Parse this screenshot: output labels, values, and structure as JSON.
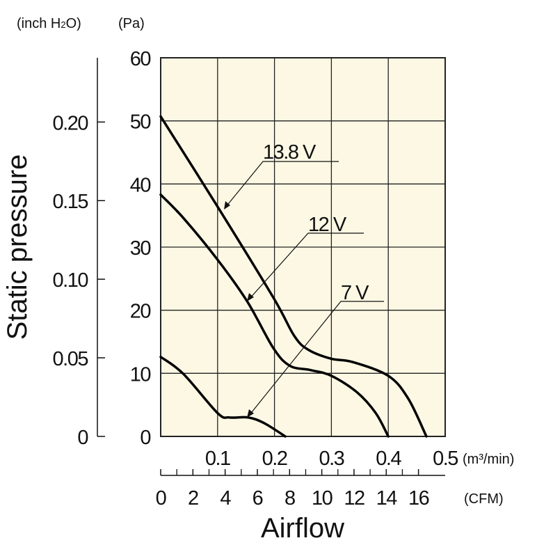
{
  "chart_data": {
    "type": "line",
    "title": "",
    "xlabel": "Airflow",
    "ylabel": "Static pressure",
    "x_unit_primary": "(m³/min)",
    "x_unit_secondary": "(CFM)",
    "y_unit_primary": "(Pa)",
    "y_unit_secondary_parts": [
      "(inch H",
      "2",
      "O)"
    ],
    "xlim": [
      0,
      0.5
    ],
    "ylim": [
      0,
      60
    ],
    "grid": true,
    "background": "#fcf8e4",
    "x_ticks": [
      {
        "v": 0.1,
        "label": "0.1"
      },
      {
        "v": 0.2,
        "label": "0.2"
      },
      {
        "v": 0.3,
        "label": "0.3"
      },
      {
        "v": 0.4,
        "label": "0.4"
      },
      {
        "v": 0.5,
        "label": "0.5"
      }
    ],
    "cfm_ticks": [
      {
        "v": 0,
        "label": "0"
      },
      {
        "v": 2,
        "label": "2"
      },
      {
        "v": 4,
        "label": "4"
      },
      {
        "v": 6,
        "label": "6"
      },
      {
        "v": 8,
        "label": "8"
      },
      {
        "v": 10,
        "label": "10"
      },
      {
        "v": 12,
        "label": "12"
      },
      {
        "v": 14,
        "label": "14"
      },
      {
        "v": 16,
        "label": "16"
      }
    ],
    "y_ticks": [
      {
        "v": 0,
        "label": "0"
      },
      {
        "v": 10,
        "label": "10"
      },
      {
        "v": 20,
        "label": "20"
      },
      {
        "v": 30,
        "label": "30"
      },
      {
        "v": 40,
        "label": "40"
      },
      {
        "v": 50,
        "label": "50"
      },
      {
        "v": 60,
        "label": "60"
      }
    ],
    "inch_ticks": [
      {
        "v": 0,
        "label": "0"
      },
      {
        "v": 0.05,
        "label": "0.05"
      },
      {
        "v": 0.1,
        "label": "0.10"
      },
      {
        "v": 0.15,
        "label": "0.15"
      },
      {
        "v": 0.2,
        "label": "0.20"
      }
    ],
    "series": [
      {
        "name": "13.8 V",
        "x": [
          0,
          0.1,
          0.198,
          0.235,
          0.26,
          0.3,
          0.337,
          0.4,
          0.435,
          0.467
        ],
        "y": [
          50.7,
          36.4,
          22,
          15.9,
          13.7,
          12.3,
          11.8,
          9.6,
          6,
          0
        ]
      },
      {
        "name": "12 V",
        "x": [
          0,
          0.04,
          0.1,
          0.152,
          0.198,
          0.227,
          0.264,
          0.3,
          0.345,
          0.378,
          0.4
        ],
        "y": [
          38.3,
          34.6,
          28,
          21.4,
          14,
          11.2,
          10.5,
          9.6,
          7,
          3.7,
          0
        ]
      },
      {
        "name": "7 V",
        "x": [
          0,
          0.04,
          0.1,
          0.121,
          0.154,
          0.182,
          0.219
        ],
        "y": [
          12.6,
          9.9,
          3.7,
          3,
          3,
          2.1,
          0
        ]
      }
    ]
  }
}
